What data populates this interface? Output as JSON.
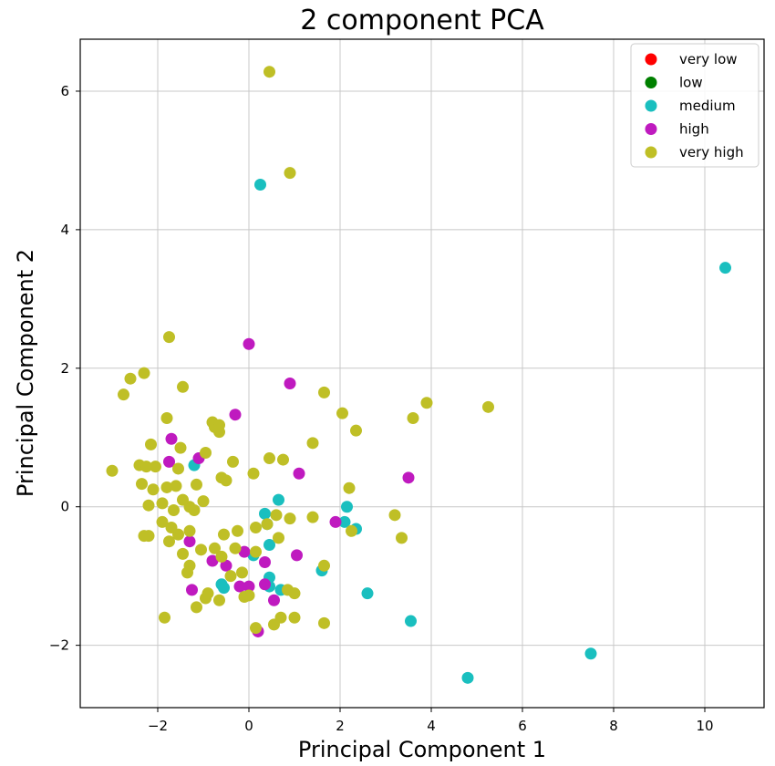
{
  "chart_data": {
    "type": "scatter",
    "title": "2 component PCA",
    "xlabel": "Principal Component 1",
    "ylabel": "Principal Component 2",
    "xlim": [
      -3.7,
      11.3
    ],
    "ylim": [
      -2.9,
      6.75
    ],
    "x_ticks": [
      -2,
      0,
      2,
      4,
      6,
      8,
      10
    ],
    "y_ticks": [
      -2,
      0,
      2,
      4,
      6
    ],
    "grid": true,
    "legend_position": "top-right",
    "series": [
      {
        "name": "very low",
        "color": "#ff0000",
        "points": []
      },
      {
        "name": "low",
        "color": "#008000",
        "points": []
      },
      {
        "name": "medium",
        "color": "#1abfbf",
        "points": [
          [
            0.25,
            4.65
          ],
          [
            10.45,
            3.45
          ],
          [
            0.35,
            -0.1
          ],
          [
            0.65,
            0.1
          ],
          [
            0.4,
            -0.25
          ],
          [
            0.45,
            -0.55
          ],
          [
            0.45,
            -1.02
          ],
          [
            0.1,
            -0.7
          ],
          [
            -0.6,
            -1.12
          ],
          [
            -0.55,
            -1.17
          ],
          [
            0.45,
            -1.15
          ],
          [
            0.7,
            -1.2
          ],
          [
            1.6,
            -0.92
          ],
          [
            2.1,
            -0.22
          ],
          [
            2.15,
            0.0
          ],
          [
            2.35,
            -0.32
          ],
          [
            2.6,
            -1.25
          ],
          [
            3.55,
            -1.65
          ],
          [
            4.8,
            -2.47
          ],
          [
            7.5,
            -2.12
          ],
          [
            -1.2,
            0.6
          ]
        ]
      },
      {
        "name": "high",
        "color": "#bf1abf",
        "points": [
          [
            0.0,
            2.35
          ],
          [
            0.9,
            1.78
          ],
          [
            -0.3,
            1.33
          ],
          [
            -1.7,
            0.98
          ],
          [
            -1.75,
            0.65
          ],
          [
            -1.1,
            0.7
          ],
          [
            1.1,
            0.48
          ],
          [
            3.5,
            0.42
          ],
          [
            -1.3,
            -0.5
          ],
          [
            -1.25,
            -1.2
          ],
          [
            -0.8,
            -0.78
          ],
          [
            -0.5,
            -0.85
          ],
          [
            -0.2,
            -1.15
          ],
          [
            0.0,
            -1.15
          ],
          [
            0.35,
            -1.12
          ],
          [
            0.55,
            -1.35
          ],
          [
            0.2,
            -1.8
          ],
          [
            0.35,
            -0.8
          ],
          [
            1.05,
            -0.7
          ],
          [
            1.9,
            -0.22
          ],
          [
            -0.1,
            -0.65
          ]
        ]
      },
      {
        "name": "very high",
        "color": "#bfbf26",
        "points": [
          [
            0.45,
            6.28
          ],
          [
            0.9,
            4.82
          ],
          [
            -1.75,
            2.45
          ],
          [
            -2.3,
            1.93
          ],
          [
            -2.6,
            1.85
          ],
          [
            -2.75,
            1.62
          ],
          [
            -1.45,
            1.73
          ],
          [
            -1.8,
            1.28
          ],
          [
            -2.15,
            0.9
          ],
          [
            -2.4,
            0.6
          ],
          [
            -3.0,
            0.52
          ],
          [
            -2.35,
            0.33
          ],
          [
            -2.25,
            0.58
          ],
          [
            -2.2,
            0.02
          ],
          [
            -2.2,
            -0.42
          ],
          [
            -2.3,
            -0.42
          ],
          [
            -1.9,
            -0.22
          ],
          [
            -1.9,
            0.05
          ],
          [
            -1.8,
            0.28
          ],
          [
            -1.6,
            0.3
          ],
          [
            -1.55,
            0.55
          ],
          [
            -1.55,
            -0.4
          ],
          [
            -1.7,
            -0.3
          ],
          [
            -1.75,
            -0.5
          ],
          [
            -1.45,
            -0.68
          ],
          [
            -1.3,
            -0.85
          ],
          [
            -1.3,
            -0.35
          ],
          [
            -1.15,
            0.32
          ],
          [
            -1.0,
            0.08
          ],
          [
            -0.95,
            0.78
          ],
          [
            -0.8,
            1.22
          ],
          [
            -0.75,
            1.15
          ],
          [
            -0.65,
            1.18
          ],
          [
            -0.65,
            1.08
          ],
          [
            -0.6,
            0.42
          ],
          [
            -0.5,
            0.38
          ],
          [
            -0.35,
            0.65
          ],
          [
            -1.85,
            -1.6
          ],
          [
            -1.15,
            -1.45
          ],
          [
            -0.95,
            -1.32
          ],
          [
            -0.9,
            -1.25
          ],
          [
            -0.65,
            -1.35
          ],
          [
            -0.4,
            -1.0
          ],
          [
            -0.3,
            -0.6
          ],
          [
            -0.15,
            -0.95
          ],
          [
            -0.1,
            -1.3
          ],
          [
            0.0,
            -1.28
          ],
          [
            0.15,
            -1.75
          ],
          [
            0.55,
            -1.7
          ],
          [
            0.7,
            -1.6
          ],
          [
            0.85,
            -1.2
          ],
          [
            1.0,
            -1.25
          ],
          [
            1.0,
            -1.6
          ],
          [
            0.65,
            -0.45
          ],
          [
            0.9,
            -0.17
          ],
          [
            1.4,
            -0.15
          ],
          [
            1.65,
            -0.85
          ],
          [
            1.65,
            -1.68
          ],
          [
            0.15,
            -0.65
          ],
          [
            0.15,
            -0.3
          ],
          [
            0.4,
            -0.25
          ],
          [
            0.6,
            -0.12
          ],
          [
            0.1,
            0.48
          ],
          [
            0.45,
            0.7
          ],
          [
            0.75,
            0.68
          ],
          [
            1.4,
            0.92
          ],
          [
            1.65,
            1.65
          ],
          [
            2.05,
            1.35
          ],
          [
            2.35,
            1.1
          ],
          [
            2.2,
            0.27
          ],
          [
            2.25,
            -0.35
          ],
          [
            3.2,
            -0.12
          ],
          [
            3.35,
            -0.45
          ],
          [
            3.6,
            1.28
          ],
          [
            3.9,
            1.5
          ],
          [
            5.25,
            1.44
          ],
          [
            -1.05,
            -0.62
          ],
          [
            -1.35,
            -0.95
          ],
          [
            -1.3,
            0.0
          ],
          [
            -1.2,
            -0.05
          ],
          [
            -0.75,
            -0.6
          ],
          [
            -0.6,
            -0.72
          ],
          [
            -0.55,
            -0.4
          ],
          [
            -0.25,
            -0.35
          ],
          [
            -1.5,
            0.85
          ],
          [
            -1.65,
            -0.05
          ],
          [
            -1.45,
            0.1
          ],
          [
            -2.1,
            0.25
          ],
          [
            -2.05,
            0.58
          ]
        ]
      }
    ]
  }
}
